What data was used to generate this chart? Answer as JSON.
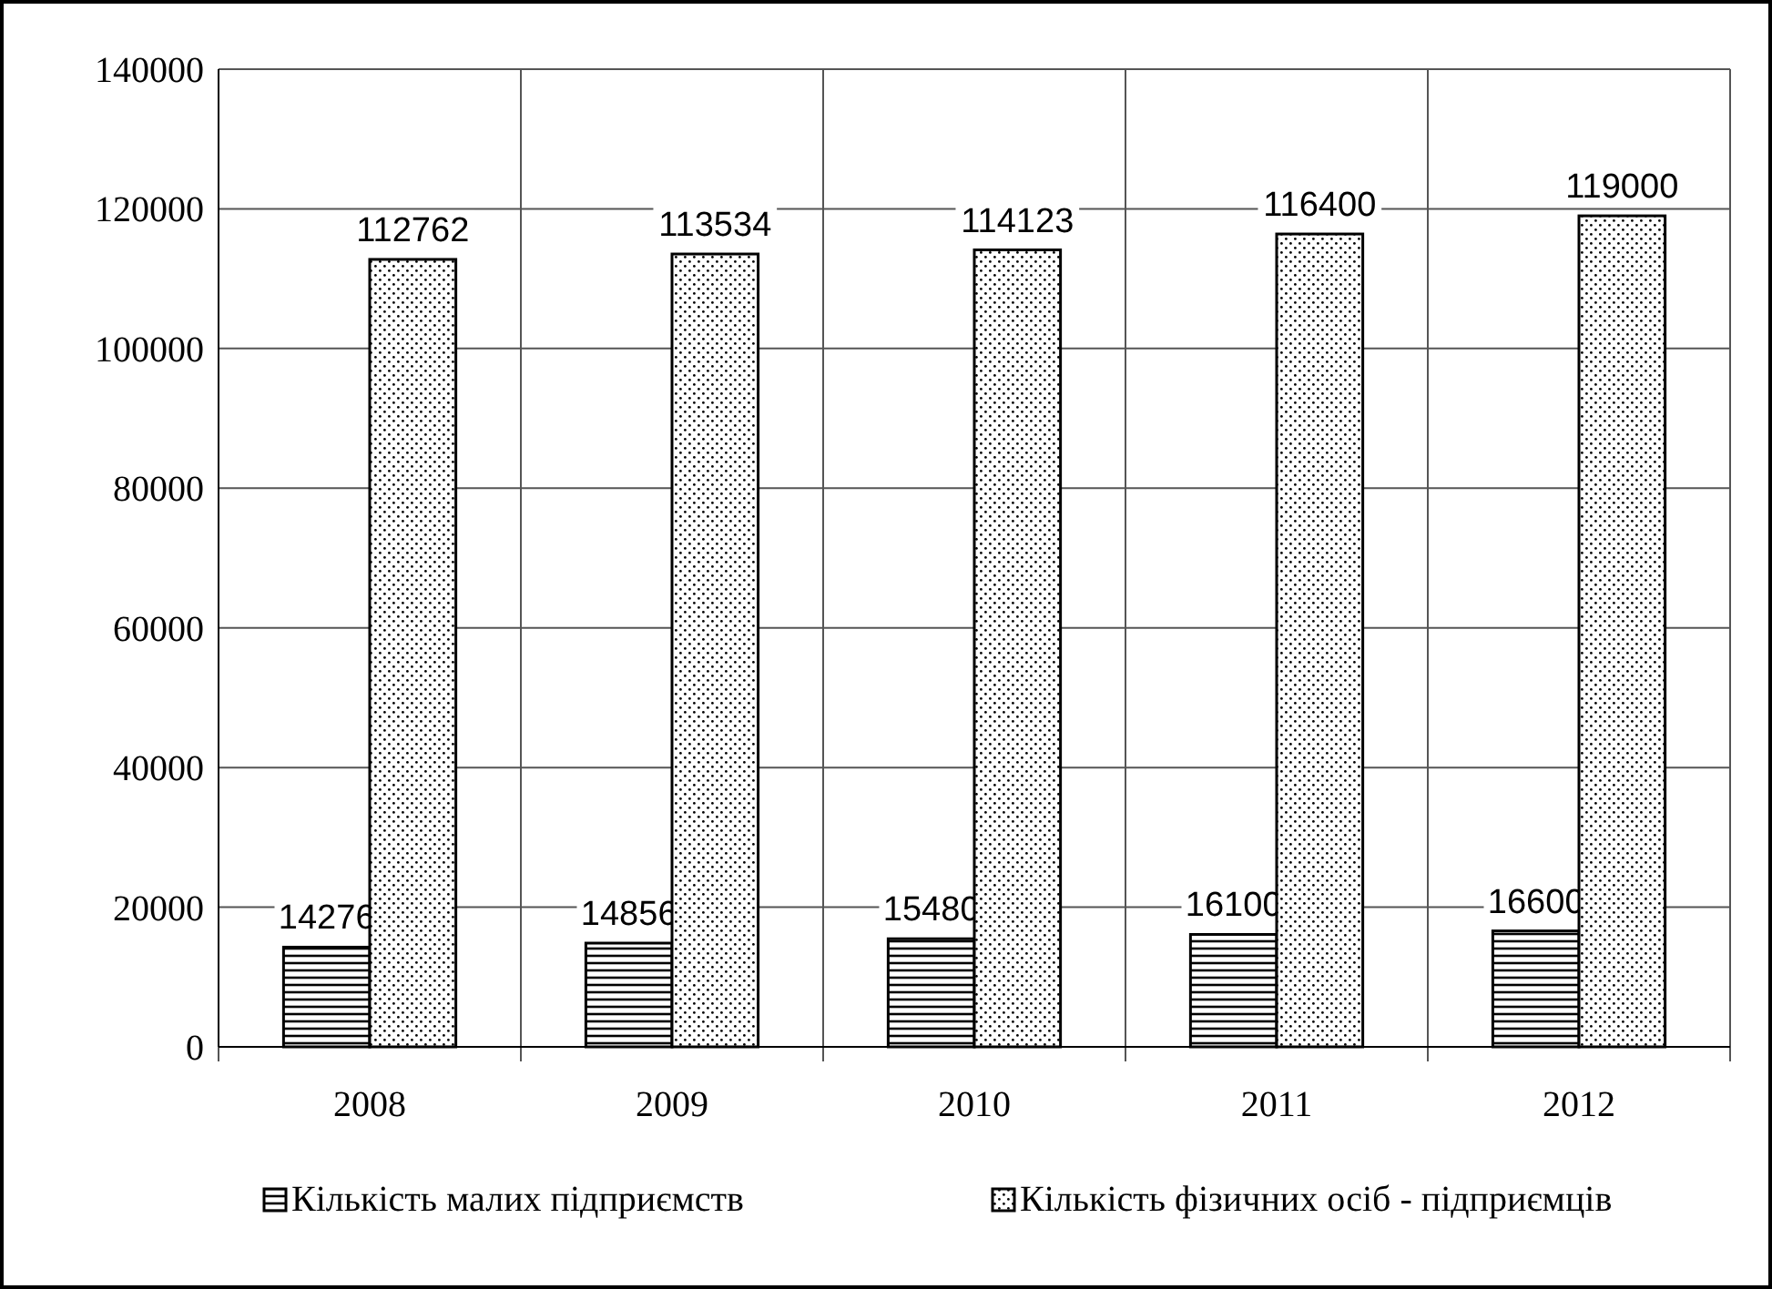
{
  "chart_data": {
    "type": "bar",
    "categories": [
      "2008",
      "2009",
      "2010",
      "2011",
      "2012"
    ],
    "series": [
      {
        "name": "Кількість малих підприємств",
        "color": "#000000",
        "values": [
          14276,
          14856,
          15480,
          16100,
          16600
        ]
      },
      {
        "name": "Кількість фізичних осіб - підприємців",
        "color": "#000000",
        "values": [
          112762,
          113534,
          114123,
          116400,
          119000
        ]
      }
    ],
    "ylim": [
      0,
      140000
    ],
    "yticks": [
      0,
      20000,
      40000,
      60000,
      80000,
      100000,
      120000,
      140000
    ],
    "grid": true,
    "legend": "bottom",
    "data_labels": true
  }
}
